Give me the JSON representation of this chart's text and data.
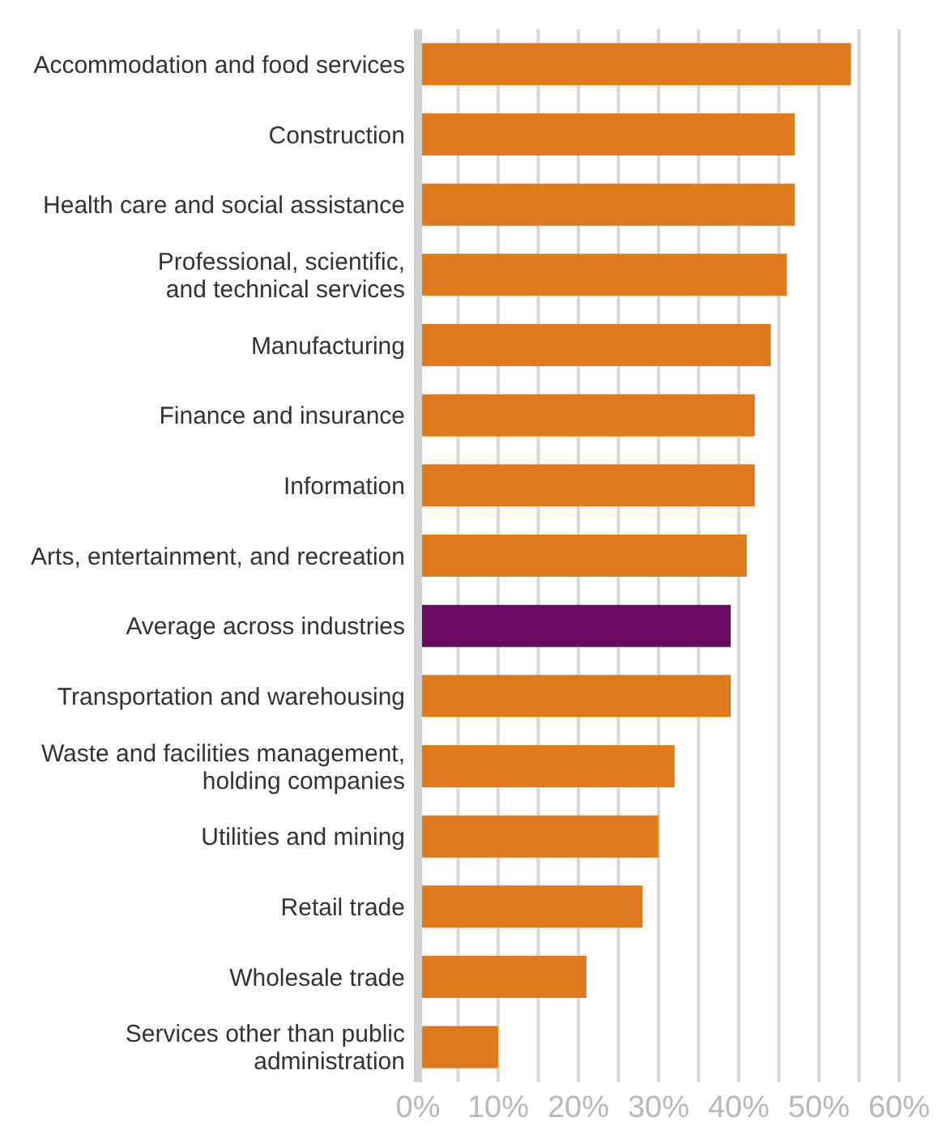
{
  "chart_data": {
    "type": "bar",
    "orientation": "horizontal",
    "categories": [
      "Accommodation and food services",
      "Construction",
      "Health care and social assistance",
      "Professional, scientific,\nand technical services",
      "Manufacturing",
      "Finance and insurance",
      "Information",
      "Arts, entertainment, and recreation",
      "Average across industries",
      "Transportation and warehousing",
      "Waste and facilities management,\nholding companies",
      "Utilities and mining",
      "Retail trade",
      "Wholesale trade",
      "Services other than public\nadministration"
    ],
    "values": [
      54,
      47,
      47,
      46,
      44,
      42,
      42,
      41,
      39,
      39,
      32,
      30,
      28,
      21,
      10
    ],
    "colors": [
      "#e07b1d",
      "#e07b1d",
      "#e07b1d",
      "#e07b1d",
      "#e07b1d",
      "#e07b1d",
      "#e07b1d",
      "#e07b1d",
      "#6a0a62",
      "#e07b1d",
      "#e07b1d",
      "#e07b1d",
      "#e07b1d",
      "#e07b1d",
      "#e07b1d"
    ],
    "xlim": [
      0,
      60
    ],
    "xticks": [
      {
        "value": 0,
        "label": "0%"
      },
      {
        "value": 5,
        "label": null
      },
      {
        "value": 10,
        "label": "10%"
      },
      {
        "value": 15,
        "label": null
      },
      {
        "value": 20,
        "label": "20%"
      },
      {
        "value": 25,
        "label": null
      },
      {
        "value": 30,
        "label": "30%"
      },
      {
        "value": 35,
        "label": null
      },
      {
        "value": 40,
        "label": "40%"
      },
      {
        "value": 45,
        "label": null
      },
      {
        "value": 50,
        "label": "50%"
      },
      {
        "value": 55,
        "label": null
      },
      {
        "value": 60,
        "label": "60%"
      }
    ],
    "grid": "x"
  }
}
